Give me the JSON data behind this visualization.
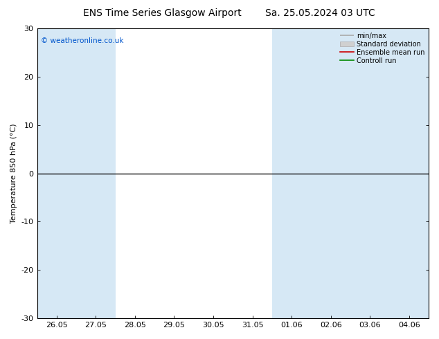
{
  "title_left": "ENS Time Series Glasgow Airport",
  "title_right": "Sa. 25.05.2024 03 UTC",
  "ylabel": "Temperature 850 hPa (°C)",
  "ylim": [
    -30,
    30
  ],
  "yticks": [
    -30,
    -20,
    -10,
    0,
    10,
    20,
    30
  ],
  "x_labels": [
    "26.05",
    "27.05",
    "28.05",
    "29.05",
    "30.05",
    "31.05",
    "01.06",
    "02.06",
    "03.06",
    "04.06"
  ],
  "x_positions": [
    0,
    1,
    2,
    3,
    4,
    5,
    6,
    7,
    8,
    9
  ],
  "xlim": [
    -0.5,
    9.5
  ],
  "copyright": "© weatheronline.co.uk",
  "bg_color": "#ffffff",
  "plot_bg_color": "#ffffff",
  "band_color": "#d6e8f5",
  "legend_entries": [
    "min/max",
    "Standard deviation",
    "Ensemble mean run",
    "Controll run"
  ],
  "legend_line_colors": [
    "#aaaaaa",
    "#cccccc",
    "#cc0000",
    "#008800"
  ],
  "hline_y": 0,
  "hline_color": "#111111",
  "title_fontsize": 10,
  "axis_fontsize": 8,
  "tick_fontsize": 8,
  "copyright_color": "#0055cc",
  "blue_band_indices": [
    0,
    1,
    6,
    7,
    8,
    9
  ]
}
